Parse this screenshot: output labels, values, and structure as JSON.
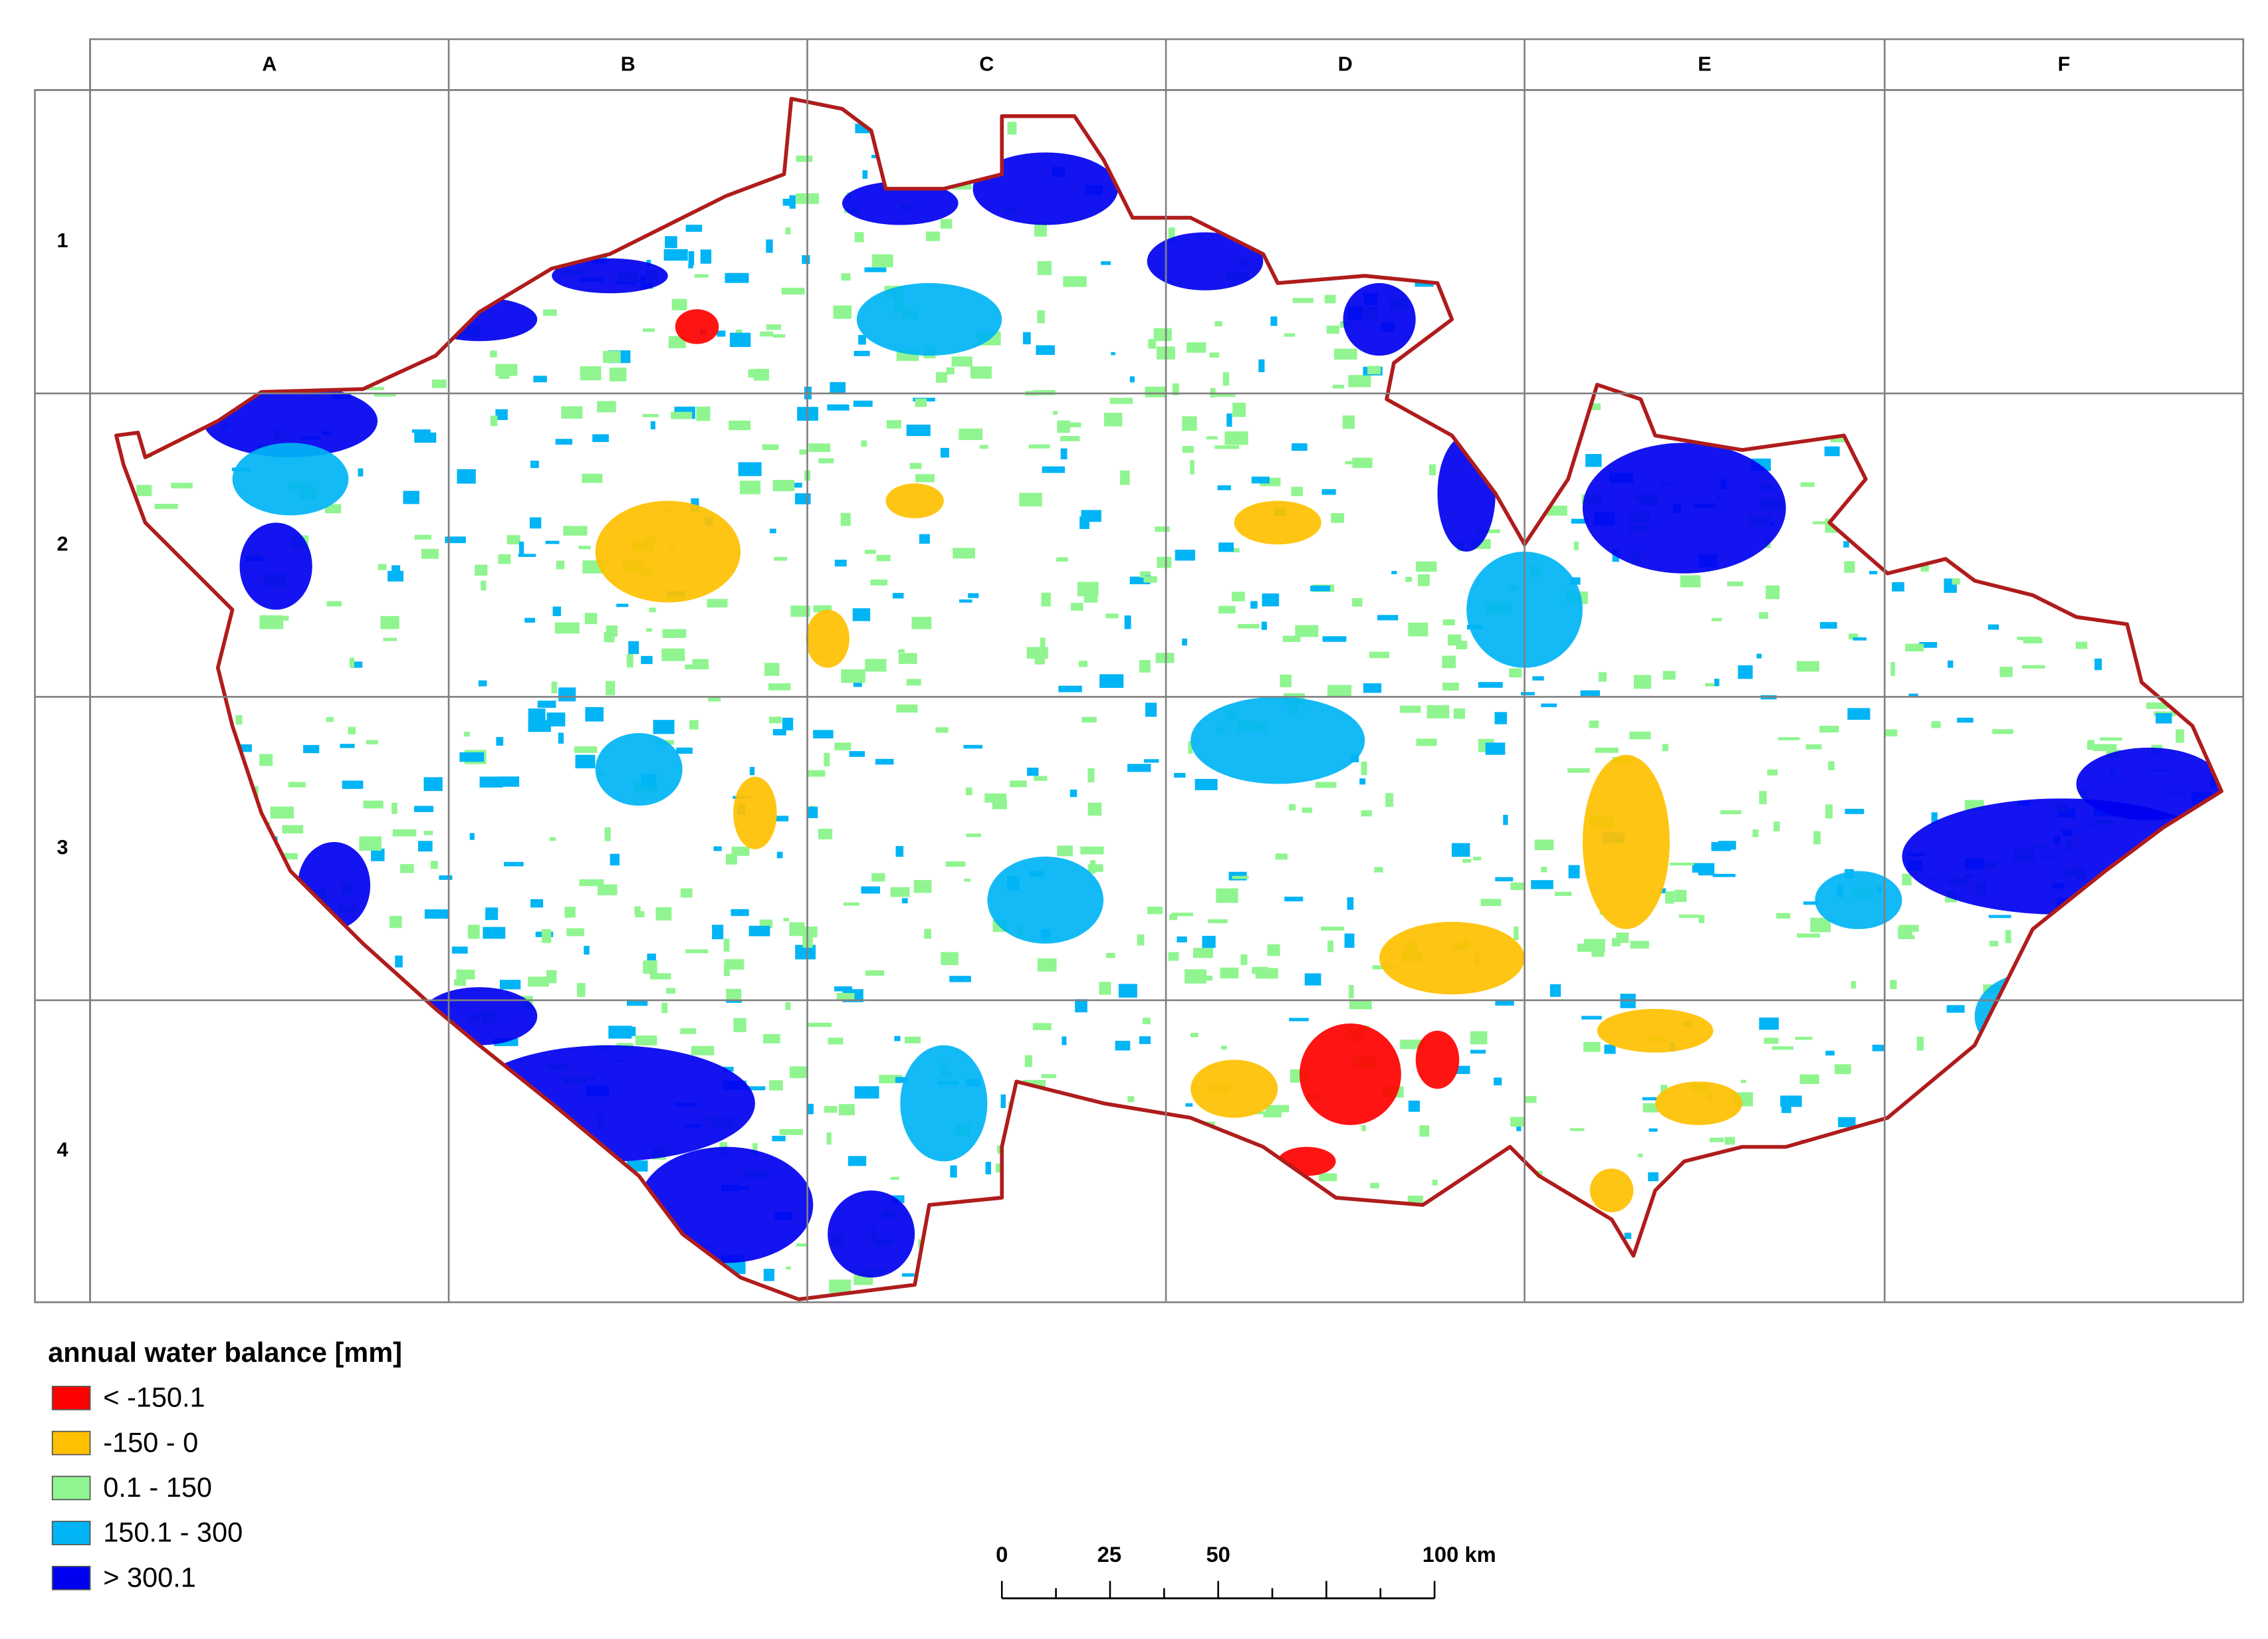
{
  "grid": {
    "columns": [
      "A",
      "B",
      "C",
      "D",
      "E",
      "F"
    ],
    "rows": [
      "1",
      "2",
      "3",
      "4"
    ]
  },
  "legend": {
    "title": "annual water balance [mm]",
    "items": [
      {
        "label": "< -150.1",
        "color": "#ff0000"
      },
      {
        "label": "-150 - 0",
        "color": "#ffc000"
      },
      {
        "label": "0.1 - 150",
        "color": "#90f590"
      },
      {
        "label": "150.1 - 300",
        "color": "#00b4f5"
      },
      {
        "label": "> 300.1",
        "color": "#0000f0"
      }
    ]
  },
  "scale_bar": {
    "labels": [
      "0",
      "25",
      "50",
      "100 km"
    ]
  }
}
